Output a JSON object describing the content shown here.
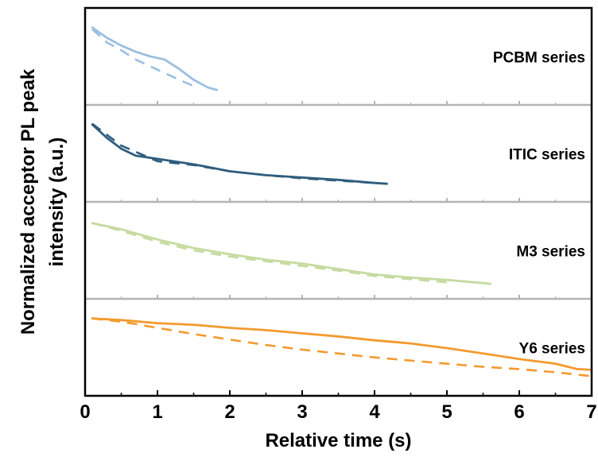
{
  "chart_data": {
    "type": "line",
    "title": "",
    "xlabel": "Relative time (s)",
    "ylabel_lines": [
      "Normalized acceptor PL peak",
      "intensity (a.u.)"
    ],
    "xlim": [
      0,
      7
    ],
    "xticks": [
      0,
      1,
      2,
      3,
      4,
      5,
      6,
      7
    ],
    "grid": false,
    "panels": [
      {
        "label": "PCBM series",
        "color": "#9bbfe0",
        "ylim": [
          0,
          1
        ],
        "solid": {
          "x": [
            0.1,
            0.3,
            0.5,
            0.7,
            0.9,
            1.1,
            1.3,
            1.5,
            1.7,
            1.82
          ],
          "y": [
            0.87,
            0.74,
            0.64,
            0.56,
            0.5,
            0.46,
            0.34,
            0.2,
            0.1,
            0.07
          ]
        },
        "dashed": {
          "x": [
            0.1,
            0.3,
            0.5,
            0.7,
            1.0,
            1.3,
            1.5
          ],
          "y": [
            0.85,
            0.68,
            0.58,
            0.46,
            0.33,
            0.2,
            0.12
          ]
        }
      },
      {
        "label": "ITIC series",
        "color": "#2f5d7e",
        "ylim": [
          0,
          1
        ],
        "solid": {
          "x": [
            0.1,
            0.3,
            0.5,
            0.7,
            1.0,
            1.5,
            2.0,
            2.5,
            3.0,
            3.5,
            4.0,
            4.17
          ],
          "y": [
            0.87,
            0.7,
            0.56,
            0.47,
            0.43,
            0.36,
            0.27,
            0.22,
            0.19,
            0.16,
            0.12,
            0.11
          ]
        },
        "dashed": {
          "x": [
            0.1,
            0.3,
            0.5,
            0.8,
            1.0,
            1.5,
            2.0,
            2.5,
            3.0,
            3.5,
            4.0
          ],
          "y": [
            0.88,
            0.74,
            0.6,
            0.48,
            0.4,
            0.35,
            0.27,
            0.22,
            0.18,
            0.15,
            0.12
          ]
        }
      },
      {
        "label": "M3 series",
        "color": "#c5dba0",
        "ylim": [
          0,
          1
        ],
        "solid": {
          "x": [
            0.1,
            0.5,
            1.0,
            1.5,
            2.0,
            2.5,
            3.0,
            3.5,
            4.0,
            4.5,
            5.0,
            5.5,
            5.6
          ],
          "y": [
            0.85,
            0.77,
            0.64,
            0.53,
            0.45,
            0.38,
            0.33,
            0.26,
            0.19,
            0.15,
            0.12,
            0.08,
            0.07
          ]
        },
        "dashed": {
          "x": [
            0.1,
            0.5,
            1.0,
            1.5,
            2.0,
            2.5,
            3.0,
            3.5,
            4.0,
            4.5,
            5.0
          ],
          "y": [
            0.85,
            0.75,
            0.61,
            0.5,
            0.42,
            0.36,
            0.3,
            0.24,
            0.17,
            0.13,
            0.09
          ]
        }
      },
      {
        "label": "Y6 series",
        "color": "#f49a2e",
        "ylim": [
          0,
          1
        ],
        "solid": {
          "x": [
            0.1,
            0.5,
            1.0,
            1.5,
            2.0,
            2.5,
            3.0,
            3.5,
            4.0,
            4.5,
            5.0,
            5.5,
            6.0,
            6.5,
            6.8,
            7.0
          ],
          "y": [
            0.87,
            0.85,
            0.81,
            0.79,
            0.75,
            0.72,
            0.68,
            0.64,
            0.59,
            0.55,
            0.49,
            0.42,
            0.35,
            0.29,
            0.22,
            0.21
          ]
        },
        "dashed": {
          "x": [
            0.1,
            0.5,
            1.0,
            1.5,
            2.0,
            2.5,
            3.0,
            3.5,
            4.0,
            4.5,
            5.0,
            5.5,
            6.0,
            6.5,
            7.0
          ],
          "y": [
            0.87,
            0.83,
            0.75,
            0.67,
            0.6,
            0.53,
            0.47,
            0.42,
            0.37,
            0.33,
            0.29,
            0.25,
            0.22,
            0.18,
            0.13
          ]
        }
      }
    ]
  }
}
